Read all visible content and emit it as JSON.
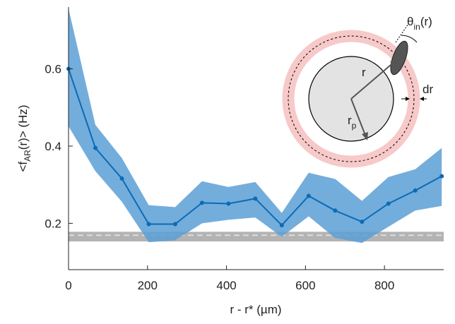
{
  "chart_data": {
    "type": "line",
    "xlabel": "r - r* (µm)",
    "ylabel_parts": [
      "<f",
      "AR",
      "(r)> (Hz)"
    ],
    "x": [
      0,
      68,
      135,
      203,
      270,
      338,
      405,
      473,
      540,
      608,
      675,
      743,
      810,
      878,
      945
    ],
    "series": [
      {
        "color": "#0b6bb5",
        "band_color": "#5b9fd6",
        "values": [
          0.6,
          0.395,
          0.316,
          0.198,
          0.198,
          0.253,
          0.251,
          0.264,
          0.195,
          0.271,
          0.233,
          0.204,
          0.251,
          0.285,
          0.322
        ],
        "upper": [
          0.756,
          0.455,
          0.369,
          0.247,
          0.242,
          0.309,
          0.294,
          0.307,
          0.227,
          0.331,
          0.315,
          0.258,
          0.32,
          0.34,
          0.395
        ],
        "lower": [
          0.451,
          0.335,
          0.256,
          0.151,
          0.156,
          0.2,
          0.209,
          0.215,
          0.165,
          0.218,
          0.162,
          0.149,
          0.191,
          0.233,
          0.245
        ]
      }
    ],
    "reference_band": {
      "lower": 0.153,
      "upper": 0.178,
      "mean": 0.169,
      "color": "#9a9a9a"
    },
    "xlim": [
      0,
      950
    ],
    "ylim": [
      0.08,
      0.76
    ],
    "xticks": [
      0,
      200,
      400,
      600,
      800
    ],
    "yticks": [
      0.2,
      0.4,
      0.6
    ],
    "inset_labels": {
      "r": "r",
      "rp": [
        "r",
        "p"
      ],
      "dr": "dr",
      "theta": [
        "θ",
        "in",
        "(r)"
      ]
    }
  }
}
